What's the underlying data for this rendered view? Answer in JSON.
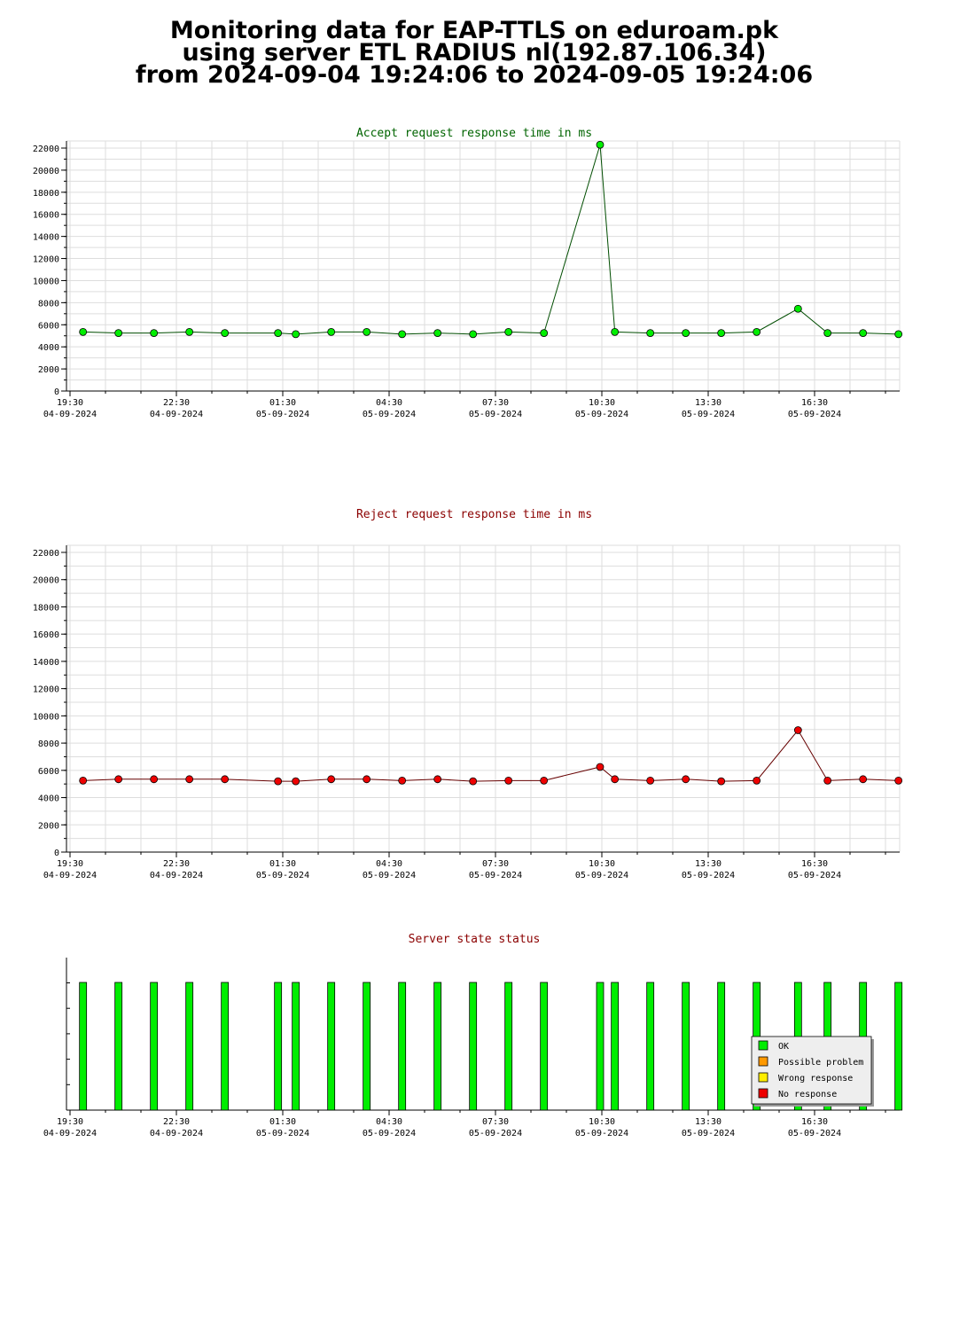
{
  "title": {
    "line1": "Monitoring data for EAP-TTLS on eduroam.pk",
    "line2": "using server ETL RADIUS nl(192.87.106.34)",
    "line3": "from 2024-09-04 19:24:06 to 2024-09-05 19:24:06"
  },
  "x_ticks": [
    {
      "time": "19:30",
      "date": "04-09-2024"
    },
    {
      "time": "22:30",
      "date": "04-09-2024"
    },
    {
      "time": "01:30",
      "date": "05-09-2024"
    },
    {
      "time": "04:30",
      "date": "05-09-2024"
    },
    {
      "time": "07:30",
      "date": "05-09-2024"
    },
    {
      "time": "10:30",
      "date": "05-09-2024"
    },
    {
      "time": "13:30",
      "date": "05-09-2024"
    },
    {
      "time": "16:30",
      "date": "05-09-2024"
    }
  ],
  "colors": {
    "accept_title": "#006400",
    "reject_title": "#8b0000",
    "status_title": "#8b0000",
    "accept_line": "#004d00",
    "accept_marker": "#00ee00",
    "reject_line": "#660000",
    "reject_marker": "#ee0000",
    "ok": "#00ee00",
    "possible_problem": "#ff9900",
    "wrong_response": "#ffee00",
    "no_response": "#ee0000",
    "grid": "#dddddd"
  },
  "chart_data": [
    {
      "type": "line",
      "title": "Accept request response time in ms",
      "ylim": [
        0,
        22000
      ],
      "yticks": [
        0,
        2000,
        4000,
        6000,
        8000,
        10000,
        12000,
        14000,
        16000,
        18000,
        20000,
        22000
      ],
      "series": [
        {
          "x": [
            "19:52",
            "20:52",
            "21:52",
            "22:52",
            "23:52",
            "01:22",
            "01:52",
            "02:52",
            "03:52",
            "04:52",
            "05:52",
            "06:52",
            "07:52",
            "08:52",
            "10:27",
            "10:52",
            "11:52",
            "12:52",
            "13:52",
            "14:52",
            "16:02",
            "16:52",
            "17:52",
            "18:52"
          ],
          "values": [
            5350,
            5250,
            5250,
            5350,
            5250,
            5250,
            5150,
            5350,
            5350,
            5150,
            5250,
            5150,
            5350,
            5250,
            22300,
            5350,
            5250,
            5250,
            5250,
            5350,
            7450,
            5250,
            5250,
            5150
          ]
        }
      ]
    },
    {
      "type": "line",
      "title": "Reject request response time in ms",
      "ylim": [
        0,
        22000
      ],
      "yticks": [
        0,
        2000,
        4000,
        6000,
        8000,
        10000,
        12000,
        14000,
        16000,
        18000,
        20000,
        22000
      ],
      "series": [
        {
          "x": [
            "19:52",
            "20:52",
            "21:52",
            "22:52",
            "23:52",
            "01:22",
            "01:52",
            "02:52",
            "03:52",
            "04:52",
            "05:52",
            "06:52",
            "07:52",
            "08:52",
            "10:27",
            "10:52",
            "11:52",
            "12:52",
            "13:52",
            "14:52",
            "16:02",
            "16:52",
            "17:52",
            "18:52"
          ],
          "values": [
            5250,
            5350,
            5350,
            5350,
            5350,
            5200,
            5200,
            5350,
            5350,
            5250,
            5350,
            5200,
            5250,
            5250,
            6250,
            5350,
            5250,
            5350,
            5200,
            5250,
            8950,
            5250,
            5350,
            5250
          ]
        }
      ]
    },
    {
      "type": "bar",
      "title": "Server state status",
      "x": [
        "19:52",
        "20:52",
        "21:52",
        "22:52",
        "23:52",
        "01:22",
        "01:52",
        "02:52",
        "03:52",
        "04:52",
        "05:52",
        "06:52",
        "07:52",
        "08:52",
        "10:27",
        "10:52",
        "11:52",
        "12:52",
        "13:52",
        "14:52",
        "16:02",
        "16:52",
        "17:52",
        "18:52"
      ],
      "states": [
        "OK",
        "OK",
        "OK",
        "OK",
        "OK",
        "OK",
        "OK",
        "OK",
        "OK",
        "OK",
        "OK",
        "OK",
        "OK",
        "OK",
        "OK",
        "OK",
        "OK",
        "OK",
        "OK",
        "OK",
        "OK",
        "OK",
        "OK",
        "OK"
      ],
      "legend": [
        "OK",
        "Possible problem",
        "Wrong response",
        "No response"
      ],
      "legend_position": "bottom-right"
    }
  ]
}
